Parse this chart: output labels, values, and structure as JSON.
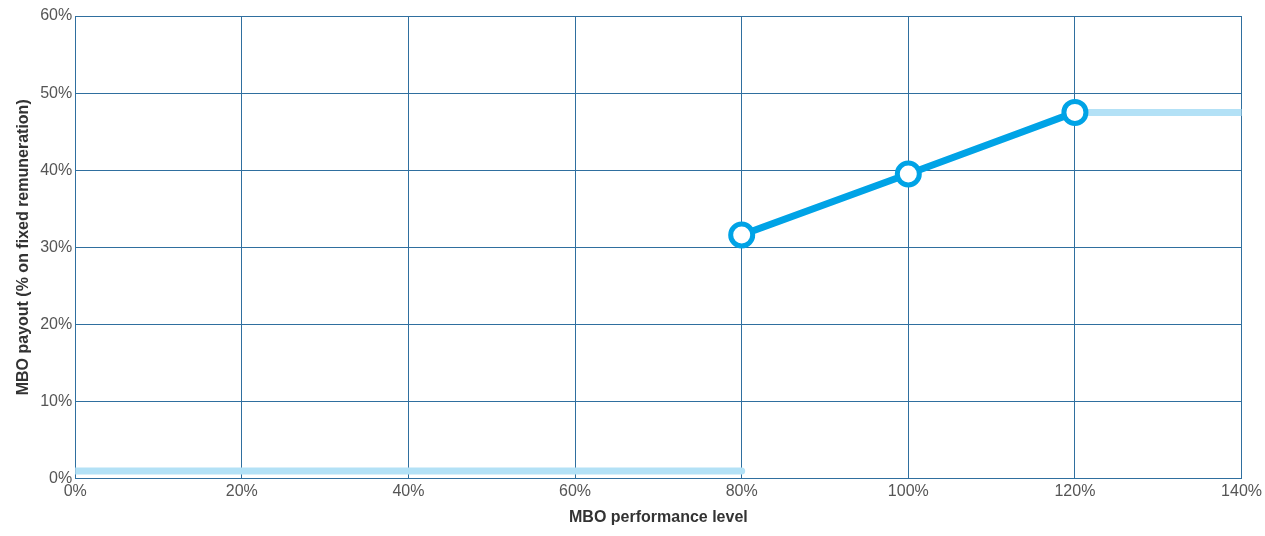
{
  "chart_data": {
    "type": "line",
    "xlabel": "MBO performance level",
    "ylabel": "MBO payout (% on fixed remuneration)",
    "xlim": [
      0,
      140
    ],
    "ylim": [
      0,
      60
    ],
    "xticks": [
      {
        "value": 0,
        "label": "0%"
      },
      {
        "value": 20,
        "label": "20%"
      },
      {
        "value": 40,
        "label": "40%"
      },
      {
        "value": 60,
        "label": "60%"
      },
      {
        "value": 80,
        "label": "80%"
      },
      {
        "value": 100,
        "label": "100%"
      },
      {
        "value": 120,
        "label": "120%"
      },
      {
        "value": 140,
        "label": "140%"
      }
    ],
    "yticks": [
      {
        "value": 0,
        "label": "0%"
      },
      {
        "value": 10,
        "label": "10%"
      },
      {
        "value": 20,
        "label": "20%"
      },
      {
        "value": 30,
        "label": "30%"
      },
      {
        "value": 40,
        "label": "40%"
      },
      {
        "value": 50,
        "label": "50%"
      },
      {
        "value": 60,
        "label": "60%"
      }
    ],
    "grid": true,
    "legend": false,
    "line_style": "solid",
    "series": [
      {
        "color": "#b3e1f6",
        "x": [
          0,
          80
        ],
        "values": [
          1,
          1
        ],
        "marker": "none"
      },
      {
        "color": "#00a3e6",
        "x": [
          80,
          100,
          120
        ],
        "values": [
          31.6,
          39.5,
          47.5
        ],
        "marker": "circle"
      },
      {
        "color": "#b3e1f6",
        "x": [
          120,
          140
        ],
        "values": [
          47.5,
          47.5
        ],
        "marker": "none"
      }
    ]
  }
}
